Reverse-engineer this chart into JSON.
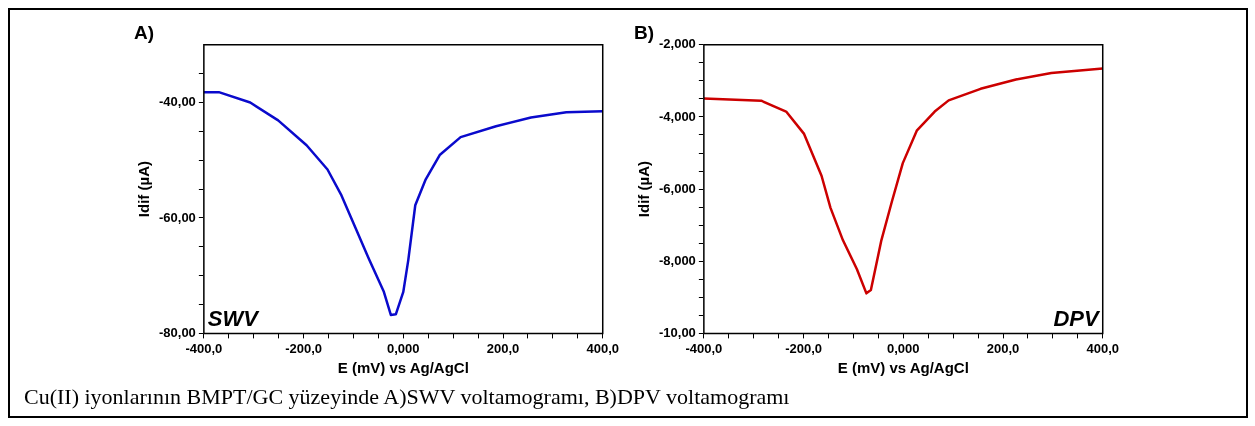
{
  "chart_data": [
    {
      "type": "line",
      "title": "A)",
      "xlabel": "E (mV) vs Ag/AgCl",
      "ylabel": "Idif (µA)",
      "annotations": [
        "SWV",
        "Cu(II) iyonlarının BMPT/GC yüzeyinde A)SWV voltamogramı, B)DPV voltamogramı"
      ],
      "xlim": [
        -400,
        400
      ],
      "xticks": [
        {
          "value": -400,
          "label": "-400,0"
        },
        {
          "value": -350,
          "label": null
        },
        {
          "value": -300,
          "label": null
        },
        {
          "value": -250,
          "label": null
        },
        {
          "value": -200,
          "label": "-200,0"
        },
        {
          "value": -150,
          "label": null
        },
        {
          "value": -100,
          "label": null
        },
        {
          "value": -50,
          "label": null
        },
        {
          "value": 0,
          "label": "0,000"
        },
        {
          "value": 50,
          "label": null
        },
        {
          "value": 100,
          "label": null
        },
        {
          "value": 150,
          "label": null
        },
        {
          "value": 200,
          "label": "200,0"
        },
        {
          "value": 250,
          "label": null
        },
        {
          "value": 300,
          "label": null
        },
        {
          "value": 350,
          "label": null
        },
        {
          "value": 400,
          "label": "400,0"
        }
      ],
      "ylim": [
        -80,
        -30
      ],
      "yticks": [
        {
          "value": -80,
          "label": "-80,00"
        },
        {
          "value": -75,
          "label": null
        },
        {
          "value": -70,
          "label": null
        },
        {
          "value": -65,
          "label": null
        },
        {
          "value": -60,
          "label": "-60,00"
        },
        {
          "value": -55,
          "label": null
        },
        {
          "value": -50,
          "label": null
        },
        {
          "value": -45,
          "label": null
        },
        {
          "value": -40,
          "label": "-40,00"
        },
        {
          "value": -35,
          "label": null
        }
      ],
      "grid": false,
      "legend": false,
      "marker": "none",
      "line_style": "solid",
      "series": [
        {
          "color": "#0a0acc",
          "x": [
            -400,
            -370,
            -307,
            -251,
            -194,
            -152,
            -124,
            -96,
            -68,
            -39,
            -25,
            -15,
            0,
            10,
            24,
            45,
            73,
            115,
            186,
            256,
            327,
            400
          ],
          "values": [
            -38.2,
            -38.2,
            -40,
            -43.1,
            -47.4,
            -51.6,
            -56.1,
            -61.7,
            -67.3,
            -72.8,
            -76.8,
            -76.7,
            -72.8,
            -67.3,
            -57.8,
            -53.3,
            -49.1,
            -46.0,
            -44.1,
            -42.6,
            -41.7,
            -41.5
          ]
        }
      ]
    },
    {
      "type": "line",
      "title": "B)",
      "xlabel": "E (mV) vs Ag/AgCl",
      "ylabel": "Idif (µA)",
      "annotations": [
        "DPV"
      ],
      "xlim": [
        -400,
        400
      ],
      "xticks": [
        {
          "value": -400,
          "label": "-400,0"
        },
        {
          "value": -350,
          "label": null
        },
        {
          "value": -300,
          "label": null
        },
        {
          "value": -250,
          "label": null
        },
        {
          "value": -200,
          "label": "-200,0"
        },
        {
          "value": -150,
          "label": null
        },
        {
          "value": -100,
          "label": null
        },
        {
          "value": -50,
          "label": null
        },
        {
          "value": 0,
          "label": "0,000"
        },
        {
          "value": 50,
          "label": null
        },
        {
          "value": 100,
          "label": null
        },
        {
          "value": 150,
          "label": null
        },
        {
          "value": 200,
          "label": "200,0"
        },
        {
          "value": 250,
          "label": null
        },
        {
          "value": 300,
          "label": null
        },
        {
          "value": 350,
          "label": null
        },
        {
          "value": 400,
          "label": "400,0"
        }
      ],
      "ylim": [
        -10,
        -2
      ],
      "yticks": [
        {
          "value": -10,
          "label": "-10,00"
        },
        {
          "value": -9.5,
          "label": null
        },
        {
          "value": -9,
          "label": null
        },
        {
          "value": -8.5,
          "label": null
        },
        {
          "value": -8,
          "label": "-8,000"
        },
        {
          "value": -7.5,
          "label": null
        },
        {
          "value": -7,
          "label": null
        },
        {
          "value": -6.5,
          "label": null
        },
        {
          "value": -6,
          "label": "-6,000"
        },
        {
          "value": -5.5,
          "label": null
        },
        {
          "value": -5,
          "label": null
        },
        {
          "value": -4.5,
          "label": null
        },
        {
          "value": -4,
          "label": "-4,000"
        },
        {
          "value": -3.5,
          "label": null
        },
        {
          "value": -3,
          "label": null
        },
        {
          "value": -2.5,
          "label": null
        },
        {
          "value": -2,
          "label": "-2,000"
        }
      ],
      "grid": false,
      "legend": false,
      "marker": "none",
      "line_style": "solid",
      "series": [
        {
          "color": "#cc0000",
          "x": [
            -400,
            -285,
            -235,
            -199,
            -164,
            -146,
            -121,
            -93,
            -74,
            -65,
            -44,
            -23,
            -1,
            27,
            63,
            91,
            155,
            226,
            297,
            400
          ],
          "values": [
            -3.49,
            -3.55,
            -3.85,
            -4.47,
            -5.63,
            -6.52,
            -7.42,
            -8.22,
            -8.89,
            -8.8,
            -7.42,
            -6.35,
            -5.28,
            -4.38,
            -3.85,
            -3.54,
            -3.22,
            -2.96,
            -2.78,
            -2.66
          ]
        }
      ]
    }
  ]
}
